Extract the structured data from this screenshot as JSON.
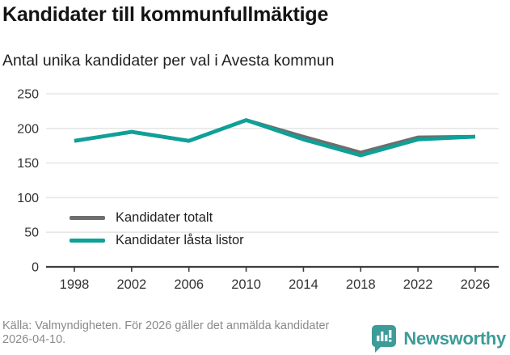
{
  "header": {
    "title": "Kandidater till kommunfullmäktige",
    "subtitle": "Antal unika kandidater per val i Avesta kommun"
  },
  "chart_data": {
    "type": "line",
    "x": [
      1998,
      2002,
      2006,
      2010,
      2014,
      2018,
      2022,
      2026
    ],
    "series": [
      {
        "name": "Kandidater totalt",
        "color": "#6e6e6e",
        "values": [
          182,
          195,
          182,
          212,
          188,
          165,
          187,
          188
        ]
      },
      {
        "name": "Kandidater låsta listor",
        "color": "#0da198",
        "values": [
          182,
          195,
          182,
          212,
          184,
          161,
          184,
          188
        ]
      }
    ],
    "ylim": [
      0,
      250
    ],
    "yticks": [
      0,
      50,
      100,
      150,
      200,
      250
    ],
    "xticks": [
      1998,
      2002,
      2006,
      2010,
      2014,
      2018,
      2022,
      2026
    ],
    "grid": true,
    "legend_position": "inside-lower-left"
  },
  "footer": {
    "source": "Källa: Valmyndigheten. För 2026 gäller det anmälda kandidater 2026-04-10.",
    "brand": "Newsworthy"
  },
  "colors": {
    "accent": "#0da198",
    "series_gray": "#6e6e6e",
    "brand_teal": "#3d9c98",
    "grid": "#e7e7e7",
    "axis": "#3d3d3d",
    "tick_text": "#333333"
  }
}
